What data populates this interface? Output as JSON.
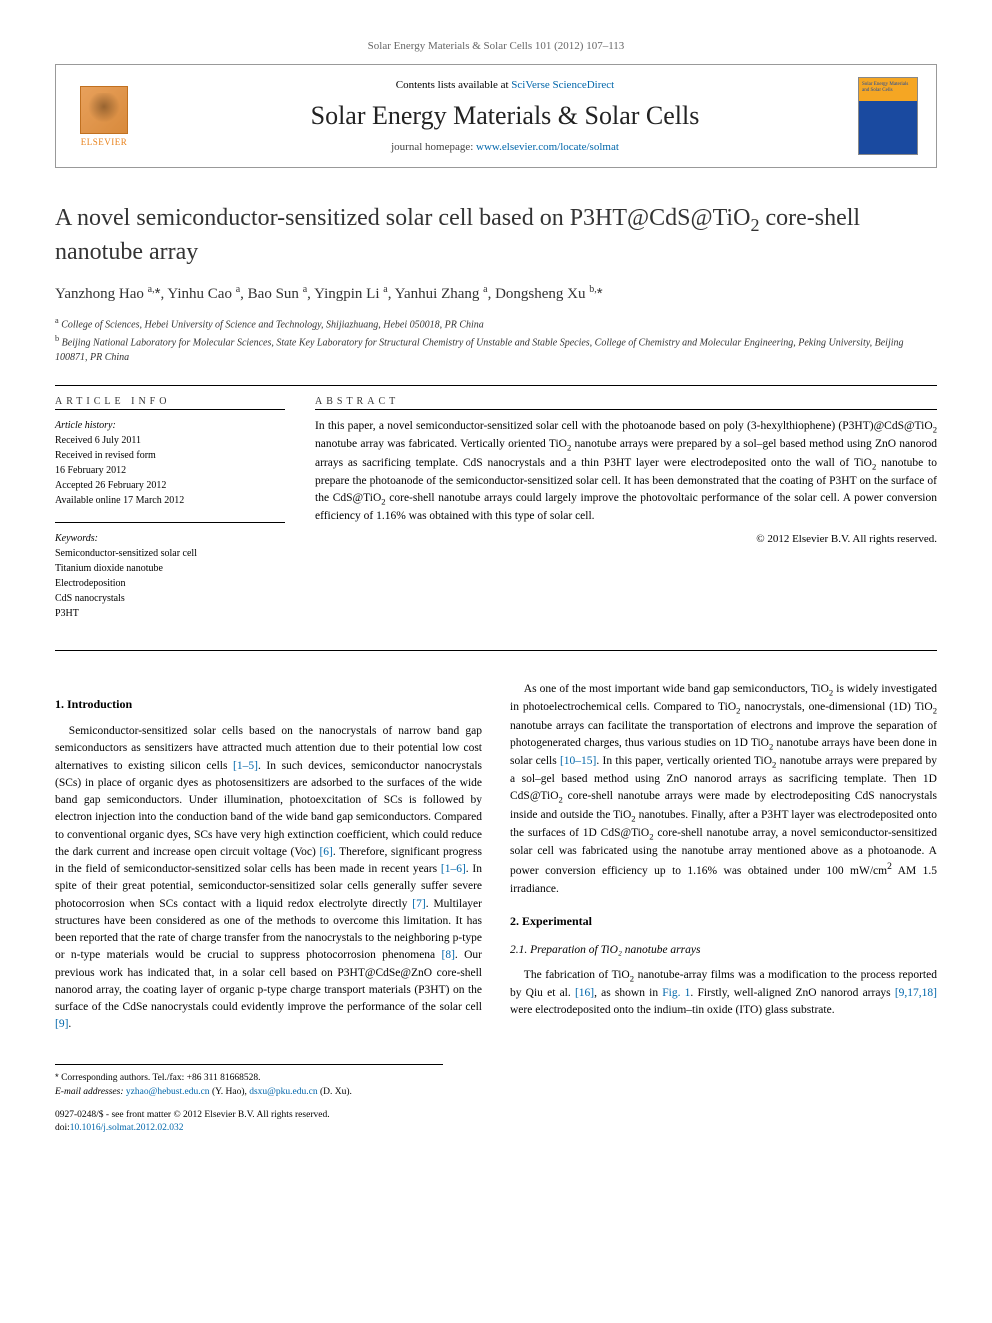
{
  "header": {
    "running_head": "Solar Energy Materials & Solar Cells 101 (2012) 107–113",
    "contents_prefix": "Contents lists available at ",
    "contents_link": "SciVerse ScienceDirect",
    "journal_name": "Solar Energy Materials & Solar Cells",
    "homepage_prefix": "journal homepage: ",
    "homepage_url": "www.elsevier.com/locate/solmat",
    "elsevier_label": "ELSEVIER",
    "cover_caption": "Solar Energy Materials and Solar Cells"
  },
  "title": "A novel semiconductor-sensitized solar cell based on P3HT@CdS@TiO₂ core-shell nanotube array",
  "authors_html": "Yanzhong Hao <sup>a,</sup><span class='asterisk'>*</span>, Yinhu Cao <sup>a</sup>, Bao Sun <sup>a</sup>, Yingpin Li <sup>a</sup>, Yanhui Zhang <sup>a</sup>, Dongsheng Xu <sup>b,</sup><span class='asterisk'>*</span>",
  "affiliations": {
    "a": "College of Sciences, Hebei University of Science and Technology, Shijiazhuang, Hebei 050018, PR China",
    "b": "Beijing National Laboratory for Molecular Sciences, State Key Laboratory for Structural Chemistry of Unstable and Stable Species, College of Chemistry and Molecular Engineering, Peking University, Beijing 100871, PR China"
  },
  "info": {
    "heading_info": "ARTICLE INFO",
    "heading_abstract": "ABSTRACT",
    "history_label": "Article history:",
    "history": [
      "Received 6 July 2011",
      "Received in revised form",
      "16 February 2012",
      "Accepted 26 February 2012",
      "Available online 17 March 2012"
    ],
    "keywords_label": "Keywords:",
    "keywords": [
      "Semiconductor-sensitized solar cell",
      "Titanium dioxide nanotube",
      "Electrodeposition",
      "CdS nanocrystals",
      "P3HT"
    ]
  },
  "abstract": "In this paper, a novel semiconductor-sensitized solar cell with the photoanode based on poly (3-hexylthiophene) (P3HT)@CdS@TiO₂ nanotube array was fabricated. Vertically oriented TiO₂ nanotube arrays were prepared by a sol–gel based method using ZnO nanorod arrays as sacrificing template. CdS nanocrystals and a thin P3HT layer were electrodeposited onto the wall of TiO₂ nanotube to prepare the photoanode of the semiconductor-sensitized solar cell. It has been demonstrated that the coating of P3HT on the surface of the CdS@TiO₂ core-shell nanotube arrays could largely improve the photovoltaic performance of the solar cell. A power conversion efficiency of 1.16% was obtained with this type of solar cell.",
  "copyright": "© 2012 Elsevier B.V. All rights reserved.",
  "sections": {
    "s1_heading": "1.  Introduction",
    "s1_p1": "Semiconductor-sensitized solar cells based on the nanocrystals of narrow band gap semiconductors as sensitizers have attracted much attention due to their potential low cost alternatives to existing silicon cells [1–5]. In such devices, semiconductor nanocrystals (SCs) in place of organic dyes as photosensitizers are adsorbed to the surfaces of the wide band gap semiconductors. Under illumination, photoexcitation of SCs is followed by electron injection into the conduction band of the wide band gap semiconductors. Compared to conventional organic dyes, SCs have very high extinction coefficient, which could reduce the dark current and increase open circuit voltage (Voc) [6]. Therefore, significant progress in the field of semiconductor-sensitized solar cells has been made in recent years [1–6]. In spite of their great potential, semiconductor-sensitized solar cells generally suffer severe photocorrosion when SCs contact with a liquid redox electrolyte directly [7]. Multilayer structures have been considered as one of the methods to overcome this limitation. It has been reported that the rate of charge transfer from the nanocrystals to the neighboring p-type or n-type materials would be crucial to suppress photocorrosion phenomena [8]. Our previous work has indicated that, in a solar cell based on P3HT@CdSe@ZnO core-shell nanorod array, the coating layer of organic p-type charge transport materials (P3HT) on the surface of the CdSe nanocrystals could evidently improve the performance of the solar cell [9].",
    "s1_p2": "As one of the most important wide band gap semiconductors, TiO₂ is widely investigated in photoelectrochemical cells. Compared to TiO₂ nanocrystals, one-dimensional (1D) TiO₂ nanotube arrays can facilitate the transportation of electrons and improve the separation of photogenerated charges, thus various studies on 1D TiO₂ nanotube arrays have been done in solar cells [10–15]. In this paper, vertically oriented TiO₂ nanotube arrays were prepared by a sol–gel based method using ZnO nanorod arrays as sacrificing template. Then 1D CdS@TiO₂ core-shell nanotube arrays were made by electrodepositing CdS nanocrystals inside and outside the TiO₂ nanotubes. Finally, after a P3HT layer was electrodeposited onto the surfaces of 1D CdS@TiO₂ core-shell nanotube array, a novel semiconductor-sensitized solar cell was fabricated using the nanotube array mentioned above as a photoanode. A power conversion efficiency up to 1.16% was obtained under 100 mW/cm² AM 1.5 irradiance.",
    "s2_heading": "2.  Experimental",
    "s2_1_heading": "2.1.  Preparation of TiO₂ nanotube arrays",
    "s2_1_p1": "The fabrication of TiO₂ nanotube-array films was a modification to the process reported by Qiu et al. [16], as shown in Fig. 1. Firstly, well-aligned ZnO nanorod arrays [9,17,18] were electrodeposited onto the indium–tin oxide (ITO) glass substrate."
  },
  "footnotes": {
    "corresponding": "Corresponding authors. Tel./fax: +86 311 81668528.",
    "email_label": "E-mail addresses:",
    "emails": [
      {
        "addr": "yzhao@hebust.edu.cn",
        "who": "(Y. Hao),"
      },
      {
        "addr": "dsxu@pku.edu.cn",
        "who": "(D. Xu)."
      }
    ]
  },
  "footer": {
    "line1": "0927-0248/$ - see front matter © 2012 Elsevier B.V. All rights reserved.",
    "doi_prefix": "doi:",
    "doi": "10.1016/j.solmat.2012.02.032"
  },
  "colors": {
    "link": "#0066aa",
    "elsevier_orange": "#e8821c",
    "cover_top": "#f5a623",
    "cover_bottom": "#1a4aa0"
  }
}
